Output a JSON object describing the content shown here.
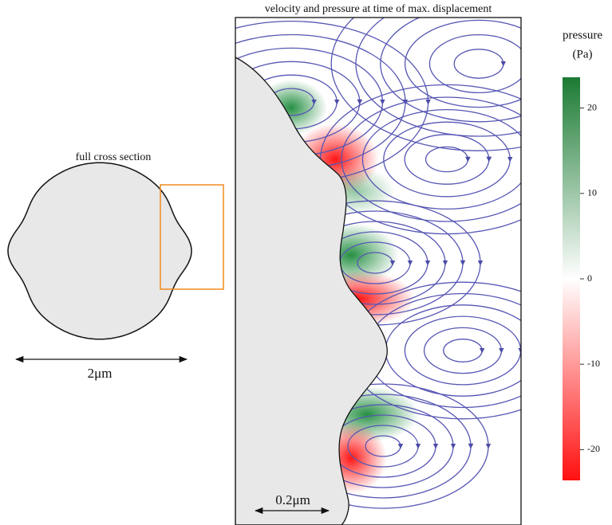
{
  "left_panel": {
    "title": "full cross section",
    "scale_label": "2μm"
  },
  "right_panel": {
    "title": "velocity and pressure at time of max. displacement",
    "scale_label": "0.2μm"
  },
  "colorbar": {
    "title": "pressure",
    "unit": "(Pa)",
    "range": [
      -23.6,
      23.6
    ],
    "ticks": [
      20,
      10,
      0,
      -10,
      -20
    ]
  }
}
